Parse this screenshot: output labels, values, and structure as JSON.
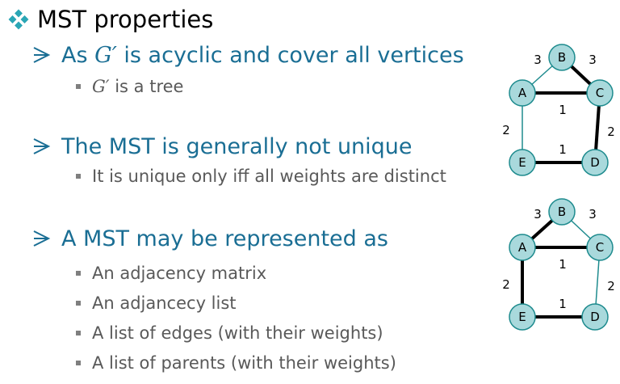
{
  "heading": "MST properties",
  "colors": {
    "heading_text": "#000000",
    "subheading_text": "#1a6e94",
    "body_text": "#595959",
    "node_fill": "#a9d9dc",
    "node_stroke": "#1e8b8e",
    "thin_edge": "#1e8b8e",
    "thick_edge": "#000000"
  },
  "points": [
    {
      "prefix": "As ",
      "symbol": "G′",
      "suffix": " is acyclic and cover all vertices",
      "subpoints": [
        {
          "symbol": "G′",
          "suffix": " is a tree"
        }
      ]
    },
    {
      "text": "The MST is generally not unique",
      "subpoints": [
        {
          "text": "It is unique only iff all weights are distinct"
        }
      ]
    },
    {
      "text": "A MST may be represented as",
      "subpoints": [
        {
          "text": "An adjacency matrix"
        },
        {
          "text": "An adjancecy list"
        },
        {
          "text": "A list of edges (with their weights)"
        },
        {
          "text": "A list of parents (with their weights)"
        }
      ]
    }
  ],
  "graphs": [
    {
      "vertices": [
        "A",
        "B",
        "C",
        "D",
        "E"
      ],
      "edges": [
        {
          "u": "A",
          "v": "B",
          "weight": "3",
          "in_mst": false
        },
        {
          "u": "B",
          "v": "C",
          "weight": "3",
          "in_mst": true
        },
        {
          "u": "A",
          "v": "C",
          "weight": "1",
          "in_mst": true
        },
        {
          "u": "A",
          "v": "E",
          "weight": "2",
          "in_mst": false
        },
        {
          "u": "C",
          "v": "D",
          "weight": "2",
          "in_mst": true
        },
        {
          "u": "E",
          "v": "D",
          "weight": "1",
          "in_mst": true
        }
      ]
    },
    {
      "vertices": [
        "A",
        "B",
        "C",
        "D",
        "E"
      ],
      "edges": [
        {
          "u": "A",
          "v": "B",
          "weight": "3",
          "in_mst": true
        },
        {
          "u": "B",
          "v": "C",
          "weight": "3",
          "in_mst": false
        },
        {
          "u": "A",
          "v": "C",
          "weight": "1",
          "in_mst": true
        },
        {
          "u": "A",
          "v": "E",
          "weight": "2",
          "in_mst": true
        },
        {
          "u": "C",
          "v": "D",
          "weight": "2",
          "in_mst": false
        },
        {
          "u": "E",
          "v": "D",
          "weight": "1",
          "in_mst": true
        }
      ]
    }
  ]
}
